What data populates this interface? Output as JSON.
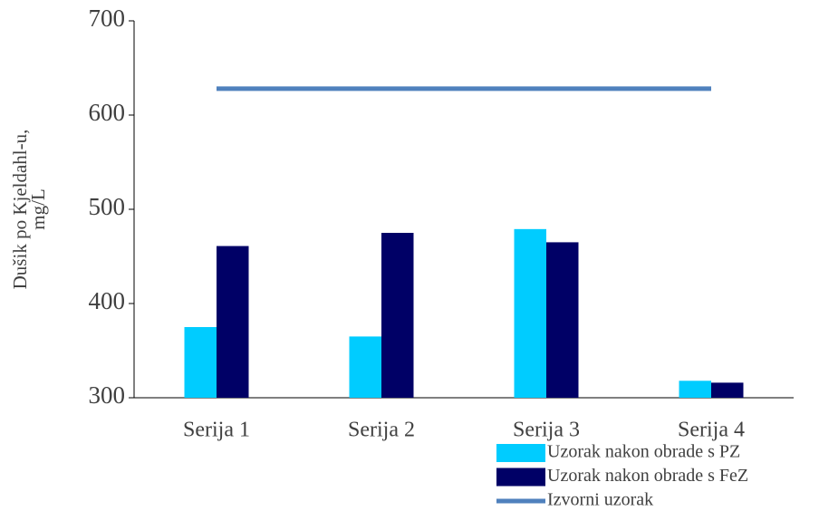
{
  "chart_data": {
    "type": "bar",
    "y_label": [
      "Dušik po Kjeldahl-u,",
      "mg/L"
    ],
    "categories": [
      "Serija 1",
      "Serija 2",
      "Serija 3",
      "Serija 4"
    ],
    "series": [
      {
        "name": "Uzorak nakon obrade s PZ",
        "color": "#00ccff",
        "values": [
          375,
          365,
          479,
          318
        ]
      },
      {
        "name": "Uzorak nakon obrade s FeZ",
        "color": "#000066",
        "values": [
          461,
          475,
          465,
          316
        ]
      },
      {
        "name": "Izvorni uzorak",
        "color": "#4f81bd",
        "type": "line",
        "values": [
          628,
          628,
          628,
          628
        ]
      }
    ],
    "ylim": [
      300,
      700
    ],
    "yticks": [
      300,
      400,
      500,
      600,
      700
    ],
    "grid": false,
    "legend": "bottom-right"
  }
}
